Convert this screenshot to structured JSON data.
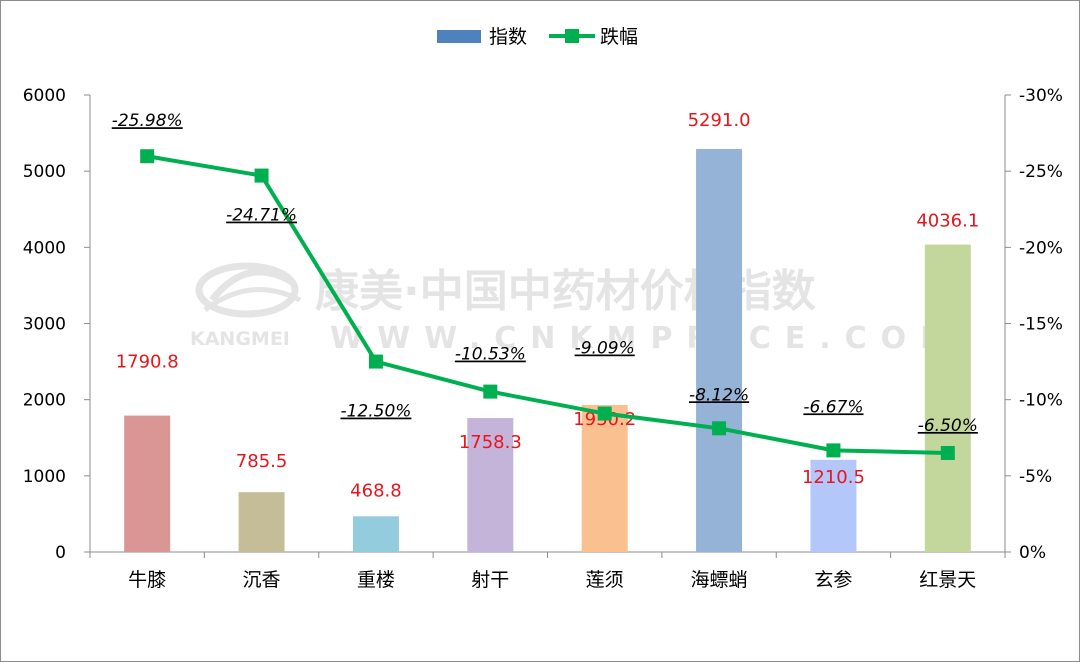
{
  "chart_data": {
    "type": "bar+line",
    "categories": [
      "牛膝",
      "沉香",
      "重楼",
      "射干",
      "莲须",
      "海螵蛸",
      "玄参",
      "红景天"
    ],
    "series": [
      {
        "name": "指数",
        "kind": "bar",
        "axis": "left",
        "values": [
          1790.8,
          785.5,
          468.8,
          1758.3,
          1930.2,
          5291.0,
          1210.5,
          4036.1
        ],
        "labels": [
          "1790.8",
          "785.5",
          "468.8",
          "1758.3",
          "1930.2",
          "5291.0",
          "1210.5",
          "4036.1"
        ],
        "colors": [
          "#d99694",
          "#c4bd97",
          "#93cddd",
          "#c5b4d9",
          "#fac090",
          "#95b3d7",
          "#b4c7fb",
          "#c3d69b"
        ],
        "legend_color": "#4f81bd"
      },
      {
        "name": "跌幅",
        "kind": "line",
        "axis": "right",
        "values": [
          -25.98,
          -24.71,
          -12.5,
          -10.53,
          -9.09,
          -8.12,
          -6.67,
          -6.5
        ],
        "labels": [
          "-25.98%",
          "-24.71%",
          "-12.50%",
          "-10.53%",
          "-9.09%",
          "-8.12%",
          "-6.67%",
          "-6.50%"
        ],
        "color": "#00b050"
      }
    ],
    "left_axis": {
      "range": [
        0,
        6000
      ],
      "ticks": [
        "0",
        "1000",
        "2000",
        "3000",
        "4000",
        "5000",
        "6000"
      ]
    },
    "right_axis": {
      "range": [
        0,
        -30
      ],
      "reversed": true,
      "ticks": [
        "0%",
        "-5%",
        "-10%",
        "-15%",
        "-20%",
        "-25%",
        "-30%"
      ]
    },
    "legend_position": "top",
    "grid": false
  },
  "watermark": {
    "line1": "康美·中国中药材价格指数",
    "line2_small": "KANGMEI",
    "line2": "WWW.CNKMPRICE.COM"
  }
}
